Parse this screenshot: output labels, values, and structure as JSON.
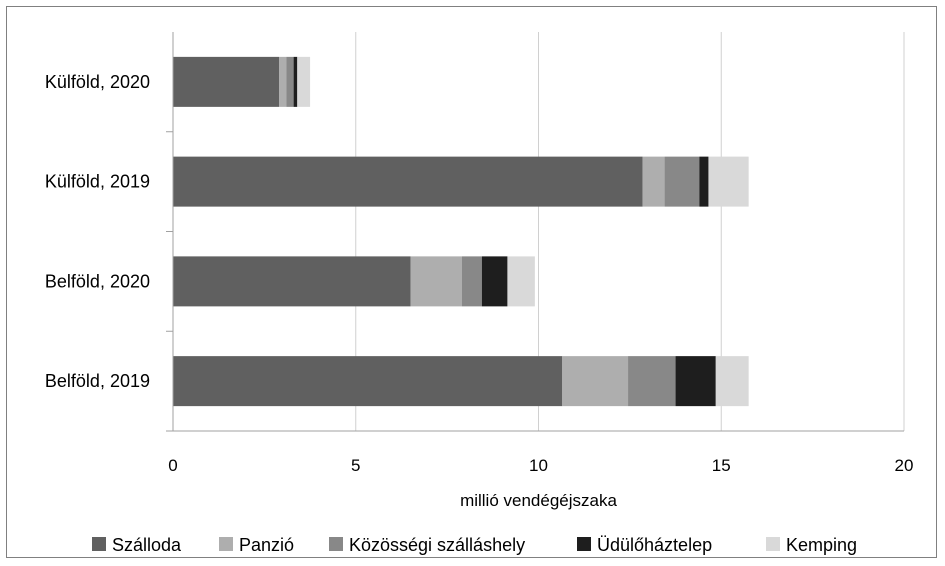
{
  "chart_data": {
    "type": "bar",
    "orientation": "horizontal",
    "stacked": true,
    "categories": [
      "Belföld, 2019",
      "Belföld, 2020",
      "Külföld, 2019",
      "Külföld, 2020"
    ],
    "series": [
      {
        "name": "Szálloda",
        "color": "#606060",
        "values": [
          10.65,
          6.5,
          12.85,
          2.9
        ]
      },
      {
        "name": "Panzió",
        "color": "#aeaeae",
        "values": [
          1.8,
          1.4,
          0.6,
          0.2
        ]
      },
      {
        "name": "Közösségi szálláshely",
        "color": "#888888",
        "values": [
          1.3,
          0.55,
          0.95,
          0.2
        ]
      },
      {
        "name": "Üdülőháztelep",
        "color": "#1e1e1e",
        "values": [
          1.1,
          0.7,
          0.25,
          0.1
        ]
      },
      {
        "name": "Kemping",
        "color": "#d9d9d9",
        "values": [
          0.9,
          0.75,
          1.1,
          0.35
        ]
      }
    ],
    "xlabel": "millió vendégéjszaka",
    "ylabel": "",
    "xlim": [
      0,
      20
    ],
    "xticks": [
      0,
      5,
      10,
      15,
      20
    ],
    "grid": true,
    "legend": "bottom"
  }
}
